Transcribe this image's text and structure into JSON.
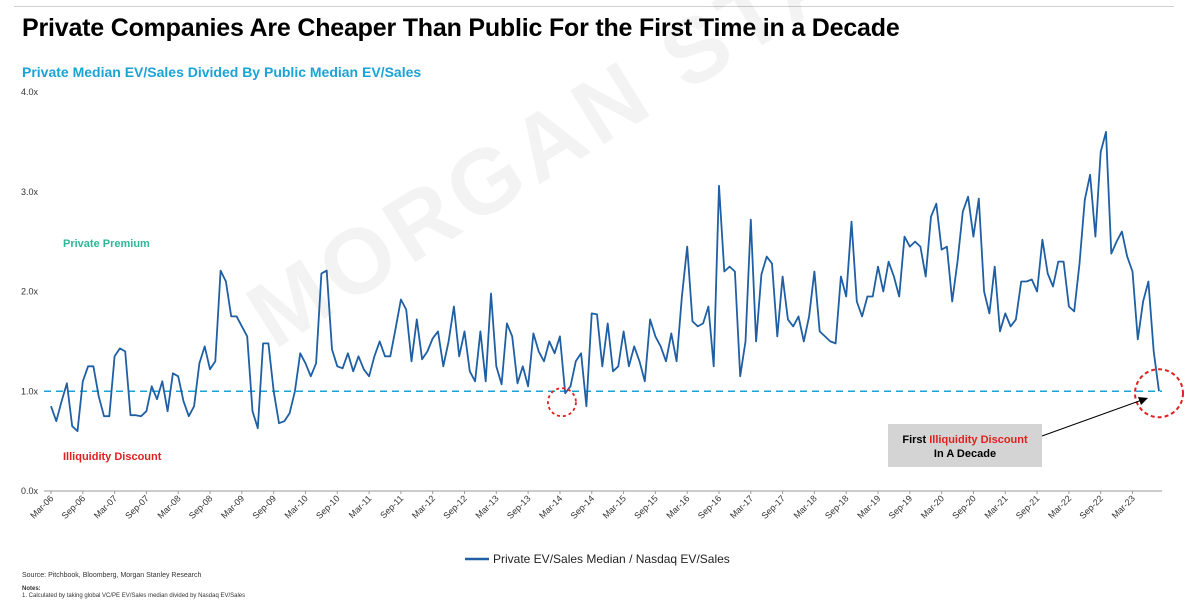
{
  "title": "Private Companies Are Cheaper Than Public For the First Time in a Decade",
  "watermark": "MORGAN STANLEY",
  "chart_data": {
    "type": "line",
    "title": "Private Median EV/Sales Divided By Public Median EV/Sales",
    "xlabel": "",
    "ylabel": "",
    "ylim": [
      0,
      4
    ],
    "yticks": [
      0,
      1,
      2,
      3,
      4
    ],
    "ytick_labels": [
      "0.0x",
      "1.0x",
      "2.0x",
      "3.0x",
      "4.0x"
    ],
    "xtick_labels": [
      "Mar-06",
      "Sep-06",
      "Mar-07",
      "Sep-07",
      "Mar-08",
      "Sep-08",
      "Mar-09",
      "Sep-09",
      "Mar-10",
      "Sep-10",
      "Mar-11",
      "Sep-11",
      "Mar-12",
      "Sep-12",
      "Mar-13",
      "Sep-13",
      "Mar-14",
      "Sep-14",
      "Mar-15",
      "Sep-15",
      "Mar-16",
      "Sep-16",
      "Mar-17",
      "Sep-17",
      "Mar-18",
      "Sep-18",
      "Mar-19",
      "Sep-19",
      "Mar-20",
      "Sep-20",
      "Mar-21",
      "Sep-21",
      "Mar-22",
      "Sep-22",
      "Mar-23"
    ],
    "grid": false,
    "legend_position": "bottom",
    "series": [
      {
        "name": "Private EV/Sales Median  /  Nasdaq EV/Sales",
        "color": "#1f5fa3",
        "values": [
          0.85,
          0.7,
          0.9,
          1.08,
          0.65,
          0.6,
          1.1,
          1.25,
          1.25,
          0.95,
          0.75,
          0.75,
          1.35,
          1.43,
          1.4,
          0.76,
          0.76,
          0.75,
          0.8,
          1.05,
          0.92,
          1.1,
          0.8,
          1.18,
          1.15,
          0.9,
          0.75,
          0.85,
          1.28,
          1.45,
          1.22,
          1.3,
          2.21,
          2.1,
          1.75,
          1.75,
          1.65,
          1.55,
          0.8,
          0.63,
          1.48,
          1.48,
          1.0,
          0.68,
          0.7,
          0.78,
          1.0,
          1.38,
          1.28,
          1.15,
          1.28,
          2.18,
          2.21,
          1.42,
          1.25,
          1.23,
          1.38,
          1.2,
          1.35,
          1.22,
          1.15,
          1.35,
          1.5,
          1.35,
          1.35,
          1.63,
          1.92,
          1.82,
          1.3,
          1.72,
          1.32,
          1.4,
          1.53,
          1.6,
          1.25,
          1.5,
          1.85,
          1.35,
          1.6,
          1.2,
          1.1,
          1.6,
          1.1,
          1.98,
          1.25,
          1.07,
          1.68,
          1.55,
          1.08,
          1.25,
          1.05,
          1.58,
          1.4,
          1.3,
          1.5,
          1.38,
          1.55,
          0.98,
          1.05,
          1.3,
          1.38,
          0.85,
          1.78,
          1.77,
          1.25,
          1.68,
          1.2,
          1.25,
          1.6,
          1.25,
          1.45,
          1.3,
          1.1,
          1.72,
          1.55,
          1.45,
          1.3,
          1.58,
          1.3,
          1.95,
          2.45,
          1.7,
          1.65,
          1.68,
          1.85,
          1.25,
          3.06,
          2.2,
          2.25,
          2.2,
          1.15,
          1.5,
          2.72,
          1.5,
          2.17,
          2.35,
          2.28,
          1.55,
          2.15,
          1.72,
          1.65,
          1.75,
          1.5,
          1.75,
          2.2,
          1.6,
          1.55,
          1.5,
          1.48,
          2.15,
          1.95,
          2.7,
          1.9,
          1.75,
          1.95,
          1.95,
          2.25,
          2.0,
          2.3,
          2.15,
          1.95,
          2.55,
          2.45,
          2.5,
          2.45,
          2.15,
          2.75,
          2.88,
          2.42,
          2.45,
          1.9,
          2.3,
          2.8,
          2.95,
          2.55,
          2.93,
          2.0,
          1.78,
          2.25,
          1.6,
          1.78,
          1.65,
          1.72,
          2.1,
          2.1,
          2.12,
          2.0,
          2.52,
          2.18,
          2.05,
          2.3,
          2.3,
          1.85,
          1.8,
          2.28,
          2.92,
          3.17,
          2.55,
          3.4,
          3.6,
          2.38,
          2.5,
          2.6,
          2.35,
          2.2,
          1.52,
          1.9,
          2.1,
          1.4,
          1.0
        ]
      }
    ],
    "reference_line": {
      "value": 1.0,
      "style": "dashed",
      "color": "#1aa3d6"
    },
    "annotations": {
      "private_premium": "Private Premium",
      "illiquidity_discount": "Illiquidity Discount",
      "callout_prefix": "First ",
      "callout_highlight": "Illiquidity Discount",
      "callout_line2": "In A Decade"
    },
    "highlight_points": [
      {
        "label": "Mar-14",
        "value": 0.85
      },
      {
        "label": "Mar-23",
        "value": 1.0
      }
    ]
  },
  "colors": {
    "line": "#1f5fa3",
    "reference": "#1aa3d6",
    "premium": "#2db79a",
    "discount": "#e02020",
    "subtitle": "#1aa3d6",
    "callout_bg": "#d4d4d4"
  },
  "footer": {
    "source": "Source: Pitchbook, Bloomberg, Morgan Stanley Research",
    "notes_heading": "Notes:",
    "notes_text": "1.   Calculated by taking global VC/PE EV/Sales median divided by Nasdaq EV/Sales"
  }
}
